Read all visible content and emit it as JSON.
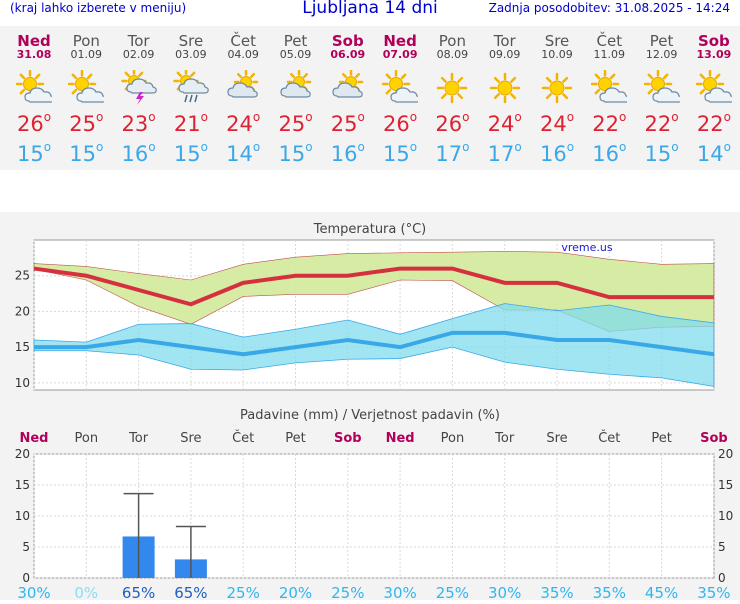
{
  "header": {
    "menu_hint": "(kraj lahko izberete v meniju)",
    "title": "Ljubljana 14 dni",
    "updated": "Zadnja posodobitev: 31.08.2025 - 14:24"
  },
  "days": [
    {
      "name": "Ned",
      "date": "31.08",
      "weekend": true,
      "icon": "sunny-cloud-icon",
      "tmax": "26",
      "tmin": "15"
    },
    {
      "name": "Pon",
      "date": "01.09",
      "weekend": false,
      "icon": "sunny-cloud-icon",
      "tmax": "25",
      "tmin": "15"
    },
    {
      "name": "Tor",
      "date": "02.09",
      "weekend": false,
      "icon": "thunderstorm-icon",
      "tmax": "23",
      "tmin": "16"
    },
    {
      "name": "Sre",
      "date": "03.09",
      "weekend": false,
      "icon": "sun-rain-icon",
      "tmax": "21",
      "tmin": "15"
    },
    {
      "name": "Čet",
      "date": "04.09",
      "weekend": false,
      "icon": "partly-cloudy-icon",
      "tmax": "24",
      "tmin": "14"
    },
    {
      "name": "Pet",
      "date": "05.09",
      "weekend": false,
      "icon": "partly-cloudy-icon",
      "tmax": "25",
      "tmin": "15"
    },
    {
      "name": "Sob",
      "date": "06.09",
      "weekend": true,
      "icon": "partly-cloudy-icon",
      "tmax": "25",
      "tmin": "16"
    },
    {
      "name": "Ned",
      "date": "07.09",
      "weekend": true,
      "icon": "sunny-cloud-icon",
      "tmax": "26",
      "tmin": "15"
    },
    {
      "name": "Pon",
      "date": "08.09",
      "weekend": false,
      "icon": "sun-icon",
      "tmax": "26",
      "tmin": "17"
    },
    {
      "name": "Tor",
      "date": "09.09",
      "weekend": false,
      "icon": "sun-icon",
      "tmax": "24",
      "tmin": "17"
    },
    {
      "name": "Sre",
      "date": "10.09",
      "weekend": false,
      "icon": "sun-icon",
      "tmax": "24",
      "tmin": "16"
    },
    {
      "name": "Čet",
      "date": "11.09",
      "weekend": false,
      "icon": "sunny-cloud-icon",
      "tmax": "22",
      "tmin": "16"
    },
    {
      "name": "Pet",
      "date": "12.09",
      "weekend": false,
      "icon": "sunny-cloud-icon",
      "tmax": "22",
      "tmin": "15"
    },
    {
      "name": "Sob",
      "date": "13.09",
      "weekend": true,
      "icon": "sunny-cloud-icon",
      "tmax": "22",
      "tmin": "14"
    }
  ],
  "degree_symbol": "o",
  "colors": {
    "weekend": "#b0005a",
    "tmax": "#dd2233",
    "tmin": "#3aa8e8",
    "precip_bar": "#3388ee"
  },
  "chart_data": [
    {
      "type": "line",
      "title": "Temperatura (°C)",
      "watermark": "vreme.us",
      "ylim": [
        9,
        30
      ],
      "yticks": [
        10,
        15,
        20,
        25
      ],
      "categories": [
        "Ned",
        "Pon",
        "Tor",
        "Sre",
        "Čet",
        "Pet",
        "Sob",
        "Ned",
        "Pon",
        "Tor",
        "Sre",
        "Čet",
        "Pet",
        "Sob"
      ],
      "series": [
        {
          "name": "max",
          "values": [
            26,
            25,
            23,
            21,
            24,
            25,
            25,
            26,
            26,
            24,
            24,
            22,
            22,
            22
          ]
        },
        {
          "name": "max_range_high",
          "values": [
            26.7,
            26.3,
            25.3,
            24.4,
            26.6,
            27.6,
            28.1,
            28.2,
            28.3,
            28.4,
            28.3,
            27.3,
            26.6,
            26.7
          ]
        },
        {
          "name": "max_range_low",
          "values": [
            25.9,
            24.4,
            20.7,
            18.2,
            22.1,
            22.4,
            22.4,
            24.4,
            24.3,
            20.2,
            20.2,
            17.2,
            17.8,
            17.9
          ]
        },
        {
          "name": "min",
          "values": [
            15,
            15,
            16,
            15,
            14,
            15,
            16,
            15,
            17,
            17,
            16,
            16,
            15,
            14
          ]
        },
        {
          "name": "min_range_high",
          "values": [
            16,
            15.7,
            18.2,
            18.3,
            16.4,
            17.5,
            18.8,
            16.8,
            19,
            21.1,
            20.1,
            20.9,
            19.3,
            18.4
          ]
        },
        {
          "name": "min_range_low",
          "values": [
            14.5,
            14.5,
            13.9,
            11.9,
            11.8,
            12.8,
            13.3,
            13.4,
            15,
            12.9,
            11.9,
            11.2,
            10.7,
            9.5
          ]
        }
      ]
    },
    {
      "type": "bar",
      "title": "Padavine (mm) / Verjetnost padavin (%)",
      "ylim": [
        0,
        20
      ],
      "yticks": [
        0,
        5,
        10,
        15,
        20
      ],
      "categories": [
        "Ned",
        "Pon",
        "Tor",
        "Sre",
        "Čet",
        "Pet",
        "Sob",
        "Ned",
        "Pon",
        "Tor",
        "Sre",
        "Čet",
        "Pet",
        "Sob"
      ],
      "values": [
        0,
        0,
        6.7,
        3,
        0,
        0,
        0,
        0,
        0,
        0,
        0,
        0,
        0,
        0
      ],
      "error_high": [
        null,
        null,
        13.6,
        8.3,
        null,
        null,
        null,
        null,
        null,
        null,
        null,
        null,
        null,
        null
      ],
      "probability": [
        "30%",
        "0%",
        "65%",
        "65%",
        "25%",
        "20%",
        "25%",
        "30%",
        "25%",
        "30%",
        "35%",
        "35%",
        "45%",
        "35%"
      ]
    }
  ]
}
